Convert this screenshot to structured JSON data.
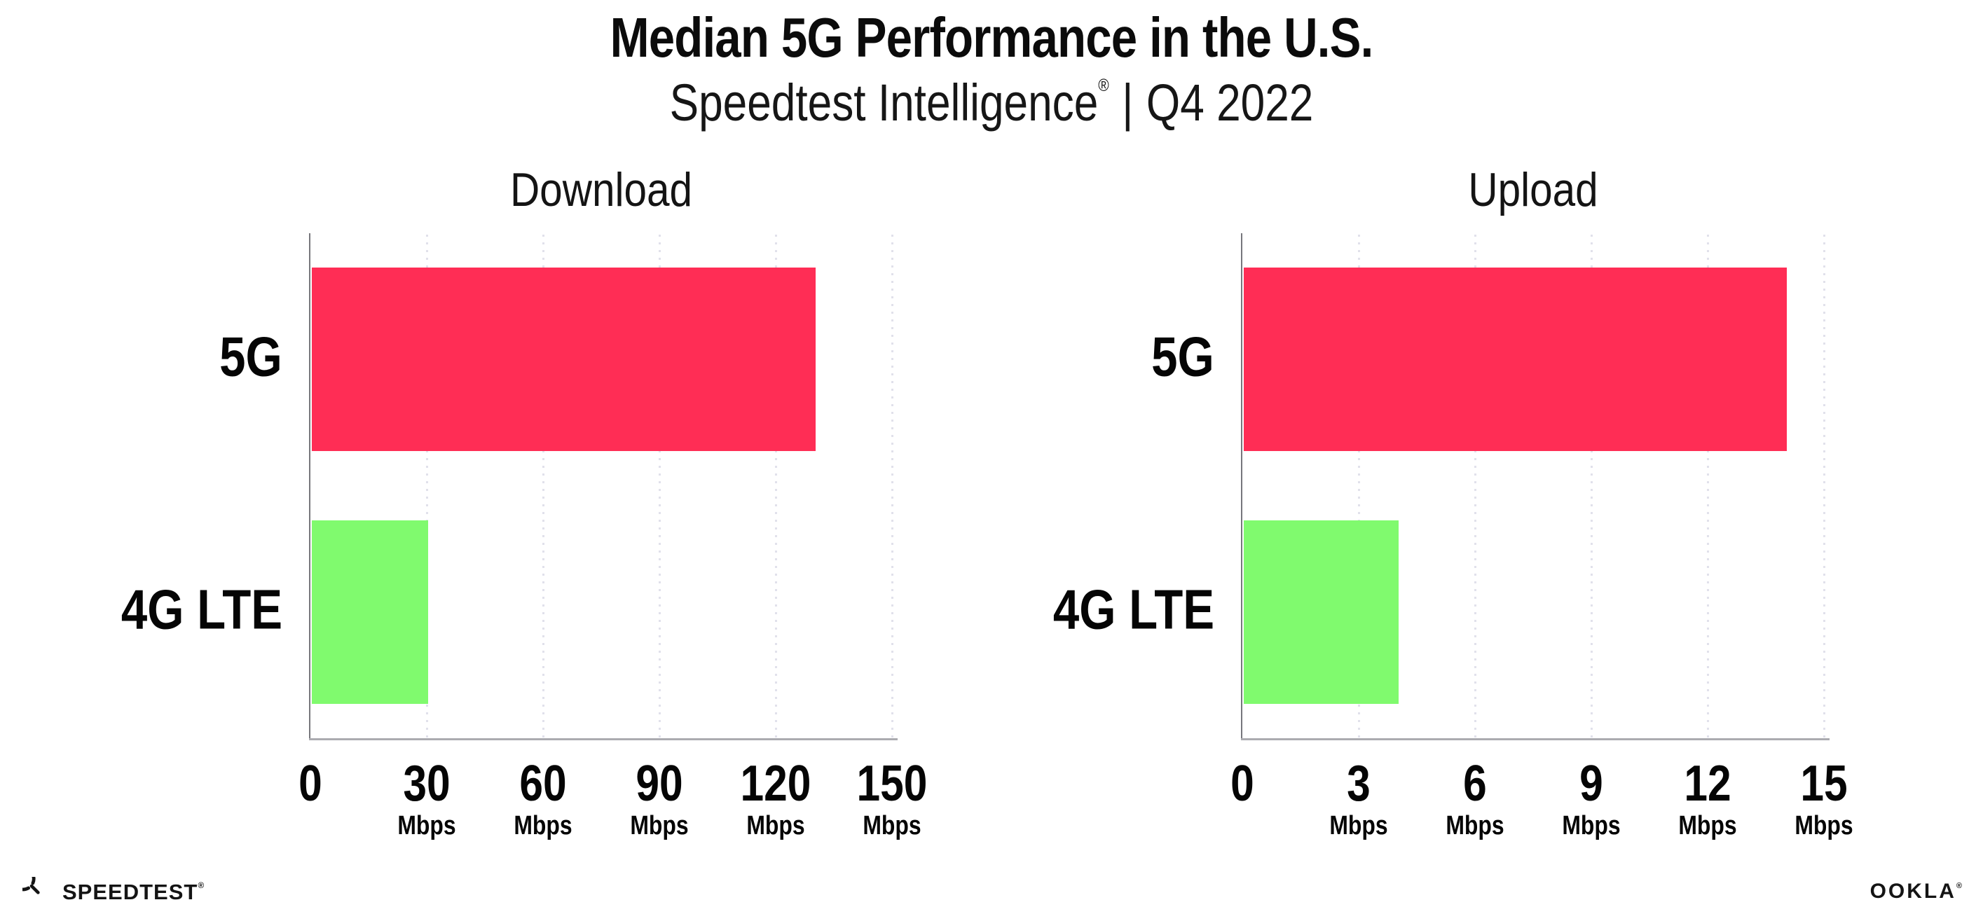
{
  "header": {
    "title": "Median 5G Performance in the U.S.",
    "subtitle_brand": "Speedtest Intelligence",
    "subtitle_mark": "®",
    "subtitle_separator": "|",
    "subtitle_period": "Q4 2022"
  },
  "chart_data": [
    {
      "type": "bar",
      "orientation": "horizontal",
      "title": "Download",
      "categories": [
        "5G",
        "4G LTE"
      ],
      "values": [
        130,
        30
      ],
      "unit": "Mbps",
      "xlim": [
        0,
        150
      ],
      "xticks": [
        0,
        30,
        60,
        90,
        120,
        150
      ],
      "bar_colors": [
        "#FF2D55",
        "#80FA6E"
      ],
      "grid": "dotted-vertical",
      "legend": "none"
    },
    {
      "type": "bar",
      "orientation": "horizontal",
      "title": "Upload",
      "categories": [
        "5G",
        "4G LTE"
      ],
      "values": [
        14,
        4
      ],
      "unit": "Mbps",
      "xlim": [
        0,
        15
      ],
      "xticks": [
        0,
        3,
        6,
        9,
        12,
        15
      ],
      "bar_colors": [
        "#FF2D55",
        "#80FA6E"
      ],
      "grid": "dotted-vertical",
      "legend": "none"
    }
  ],
  "colors": {
    "bar_5g": "#FF2D55",
    "bar_4g_lte": "#80FA6E",
    "axis_line": "#ABABB0",
    "gridline_dots": "#E1E1EB",
    "text": "#0B0B0B",
    "background": "#FFFFFF"
  },
  "footer": {
    "speedtest_label": "SPEEDTEST",
    "speedtest_mark": "®",
    "ookla_label": "OOKLA",
    "ookla_mark": "®"
  }
}
